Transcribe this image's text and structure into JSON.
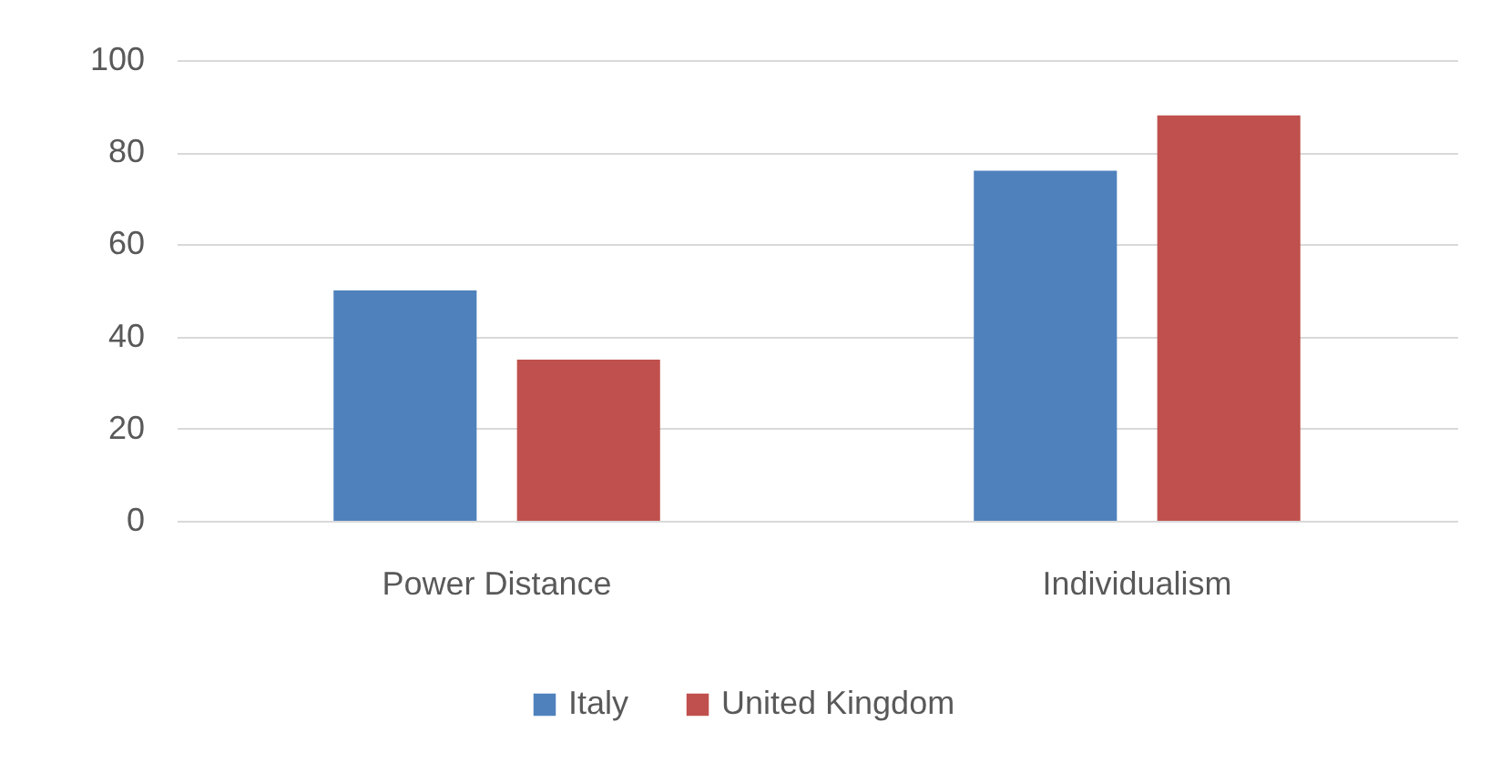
{
  "chart_data": {
    "type": "bar",
    "categories": [
      "Power Distance",
      "Individualism"
    ],
    "series": [
      {
        "name": "Italy",
        "color": "#4f81bd",
        "values": [
          50,
          76
        ]
      },
      {
        "name": "United Kingdom",
        "color": "#c0504d",
        "values": [
          35,
          88
        ]
      }
    ],
    "ylim": [
      0,
      100
    ],
    "yticks": [
      0,
      20,
      40,
      60,
      80,
      100
    ],
    "grid": "y",
    "legend": "bottom"
  }
}
